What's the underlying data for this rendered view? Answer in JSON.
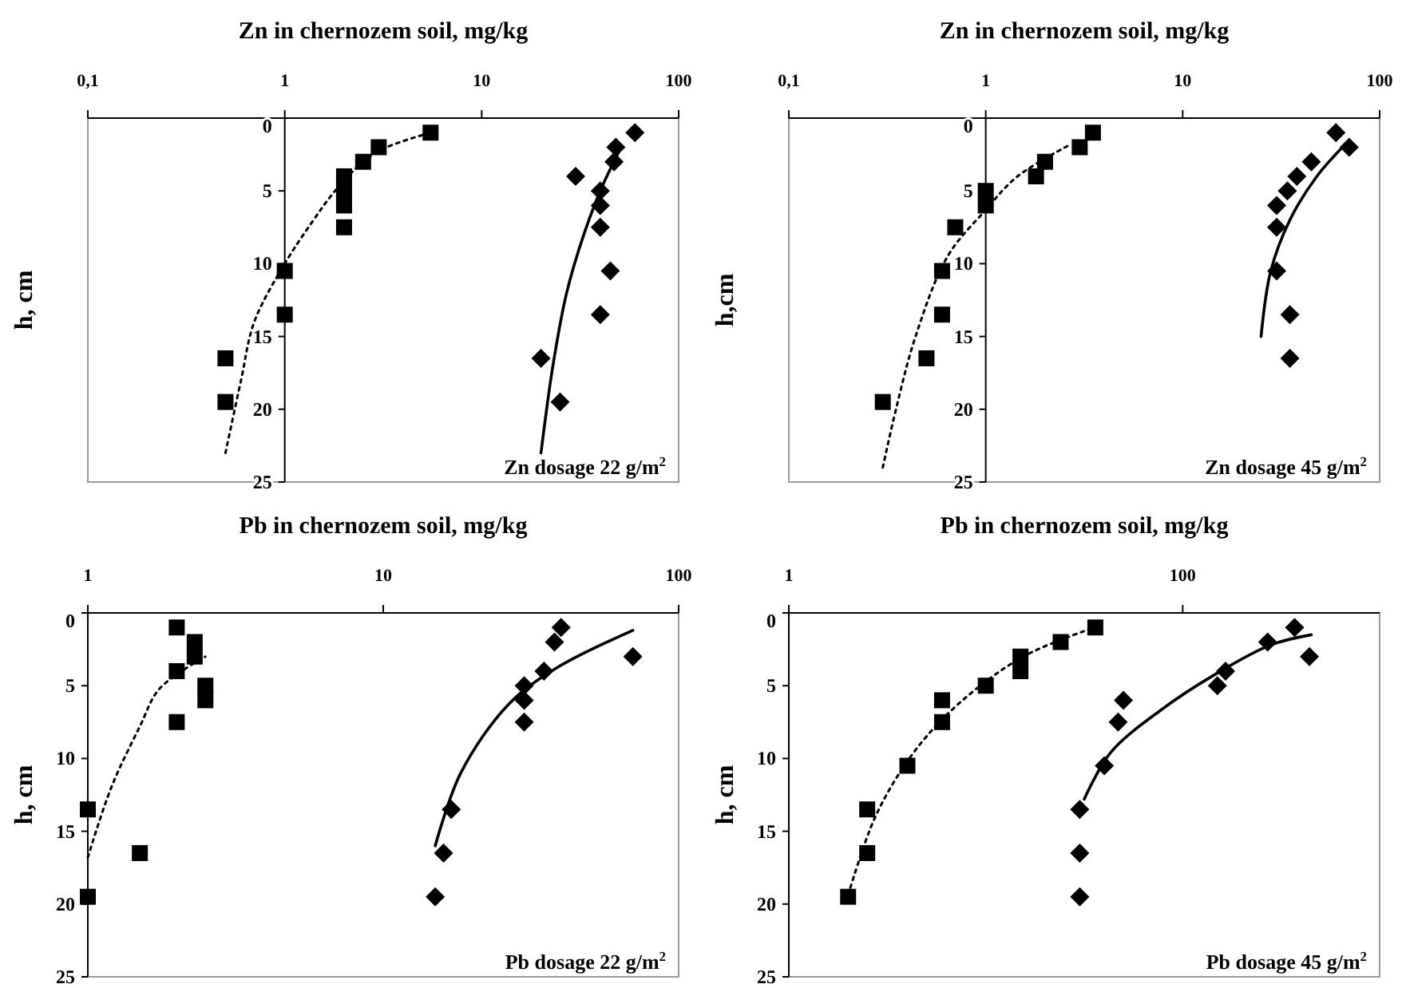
{
  "chart_data": [
    {
      "type": "scatter",
      "xlabel": "Zn in chernozem soil, mg/kg",
      "ylabel": "h, cm",
      "log": "x",
      "xlim": [
        0.1,
        100
      ],
      "xticks": [
        {
          "value": 0.1,
          "label": "0,1"
        },
        1,
        10,
        100
      ],
      "ylim": [
        25,
        0
      ],
      "yticks": [
        0,
        5,
        10,
        15,
        20,
        25
      ],
      "annotations": [
        "Zn dosage 22 g/m$^{2}$"
      ],
      "series": [
        {
          "type": "scatter",
          "marker": "square",
          "color": "#000000",
          "x": [
            5.5,
            3,
            2.5,
            2,
            2,
            2,
            2,
            1,
            1,
            0.5,
            0.5
          ],
          "values": [
            1,
            2,
            3,
            4,
            5,
            6,
            7.5,
            10.5,
            13.5,
            16.5,
            19.5
          ]
        },
        {
          "type": "scatter",
          "marker": "diamond",
          "color": "#000000",
          "x": [
            60,
            48,
            47,
            30,
            40,
            40,
            40,
            45,
            40,
            20,
            25
          ],
          "values": [
            1,
            2,
            3,
            4,
            5,
            6,
            7.5,
            10.5,
            13.5,
            16.5,
            19.5
          ]
        },
        {
          "type": "line",
          "marker": "none",
          "line_style": "dotted",
          "color": "#000000",
          "x": [
            0.5,
            0.6,
            0.7,
            1,
            1.4,
            1.8,
            2.5,
            3.3,
            5.5
          ],
          "values": [
            23,
            18,
            14,
            10,
            7,
            5,
            3,
            2,
            1
          ]
        },
        {
          "type": "line",
          "marker": "none",
          "line_style": "solid",
          "color": "#000000",
          "x": [
            20,
            23,
            27,
            33,
            40,
            51
          ],
          "values": [
            23,
            17,
            12,
            8,
            5,
            2
          ]
        }
      ]
    },
    {
      "type": "scatter",
      "xlabel": "Zn in chernozem soil, mg/kg",
      "ylabel": "h,cm",
      "log": "x",
      "xlim": [
        0.1,
        100
      ],
      "xticks": [
        {
          "value": 0.1,
          "label": "0,1"
        },
        1,
        10,
        100
      ],
      "ylim": [
        25,
        0
      ],
      "yticks": [
        0,
        5,
        10,
        15,
        20,
        25
      ],
      "annotations": [
        "Zn dosage 45 g/m$^{2}$"
      ],
      "series": [
        {
          "type": "scatter",
          "marker": "square",
          "color": "#000000",
          "x": [
            3.5,
            3,
            2,
            1.8,
            1,
            1,
            0.7,
            0.6,
            0.6,
            0.5,
            0.3
          ],
          "values": [
            1,
            2,
            3,
            4,
            5,
            6,
            7.5,
            10.5,
            13.5,
            16.5,
            19.5
          ]
        },
        {
          "type": "scatter",
          "marker": "diamond",
          "color": "#000000",
          "x": [
            60,
            70,
            45,
            38,
            34,
            30,
            30,
            30,
            35,
            35
          ],
          "values": [
            1,
            2,
            3,
            4,
            5,
            6,
            7.5,
            10.5,
            13.5,
            16.5
          ]
        },
        {
          "type": "line",
          "marker": "none",
          "line_style": "dotted",
          "color": "#000000",
          "x": [
            0.3,
            0.35,
            0.44,
            0.64,
            1,
            1.45,
            2.7
          ],
          "values": [
            24,
            20,
            15,
            9.5,
            6.3,
            4,
            1.8
          ]
        },
        {
          "type": "line",
          "marker": "none",
          "line_style": "solid",
          "color": "#000000",
          "x": [
            25,
            28,
            35,
            48,
            67
          ],
          "values": [
            15,
            10.5,
            7,
            4,
            1.8
          ]
        }
      ]
    },
    {
      "type": "scatter",
      "xlabel": "Pb in chernozem soil, mg/kg",
      "ylabel": "h, cm",
      "log": "x",
      "xlim": [
        1,
        100
      ],
      "xticks": [
        1,
        10,
        100
      ],
      "ylim": [
        25,
        0
      ],
      "yticks": [
        0,
        5,
        10,
        15,
        20,
        25
      ],
      "annotations": [
        "Pb dosage 22 g/m$^{2}$"
      ],
      "series": [
        {
          "type": "scatter",
          "marker": "square",
          "color": "#000000",
          "x": [
            2,
            2.3,
            2.3,
            2,
            2.5,
            2.5,
            2,
            1,
            1.5,
            1
          ],
          "values": [
            1,
            2,
            3,
            4,
            5,
            6,
            7.5,
            13.5,
            16.5,
            19.5
          ]
        },
        {
          "type": "scatter",
          "marker": "diamond",
          "color": "#000000",
          "x": [
            40,
            38,
            70,
            35,
            30,
            30,
            30,
            17,
            16,
            15
          ],
          "values": [
            1,
            2,
            3,
            4,
            5,
            6,
            7.5,
            13.5,
            16.5,
            19.5
          ]
        },
        {
          "type": "line",
          "marker": "none",
          "line_style": "dotted",
          "color": "#000000",
          "x": [
            1,
            1.2,
            1.5,
            1.75,
            2.5
          ],
          "values": [
            16.8,
            12,
            7.8,
            5.2,
            3
          ]
        },
        {
          "type": "line",
          "marker": "none",
          "line_style": "solid",
          "color": "#000000",
          "x": [
            15,
            18.3,
            26.5,
            38.5,
            70
          ],
          "values": [
            16,
            11,
            6.3,
            3.8,
            1.2
          ]
        }
      ]
    },
    {
      "type": "scatter",
      "xlabel": "Pb in chernozem soil, mg/kg",
      "ylabel": "h, cm",
      "log": "x",
      "xlim": [
        1,
        1000
      ],
      "xticks": [
        1,
        100
      ],
      "ylim": [
        25,
        0
      ],
      "yticks": [
        0,
        5,
        10,
        15,
        20,
        25
      ],
      "annotations": [
        "Pb dosage 45 g/m$^{2}$"
      ],
      "series": [
        {
          "type": "scatter",
          "marker": "square",
          "color": "#000000",
          "x": [
            36,
            24,
            15,
            15,
            10,
            6,
            6,
            4,
            2.5,
            2.5,
            2
          ],
          "values": [
            1,
            2,
            3,
            4,
            5,
            6,
            7.5,
            10.5,
            13.5,
            16.5,
            19.5
          ]
        },
        {
          "type": "scatter",
          "marker": "diamond",
          "color": "#000000",
          "x": [
            370,
            270,
            440,
            165,
            150,
            50,
            47,
            40,
            30,
            30,
            30
          ],
          "values": [
            1,
            2,
            3,
            4,
            5,
            6,
            7.5,
            10.5,
            13.5,
            16.5,
            19.5
          ]
        },
        {
          "type": "line",
          "marker": "none",
          "line_style": "dotted",
          "color": "#000000",
          "x": [
            2,
            2.75,
            4.3,
            7.2,
            15.5,
            34
          ],
          "values": [
            19.4,
            14,
            9.6,
            6.3,
            3,
            1.1
          ]
        },
        {
          "type": "line",
          "marker": "none",
          "line_style": "solid",
          "color": "#000000",
          "x": [
            31.6,
            43,
            77,
            147,
            280,
            450
          ],
          "values": [
            12.8,
            9.6,
            6.7,
            4.2,
            2.2,
            1.5
          ]
        }
      ]
    }
  ]
}
